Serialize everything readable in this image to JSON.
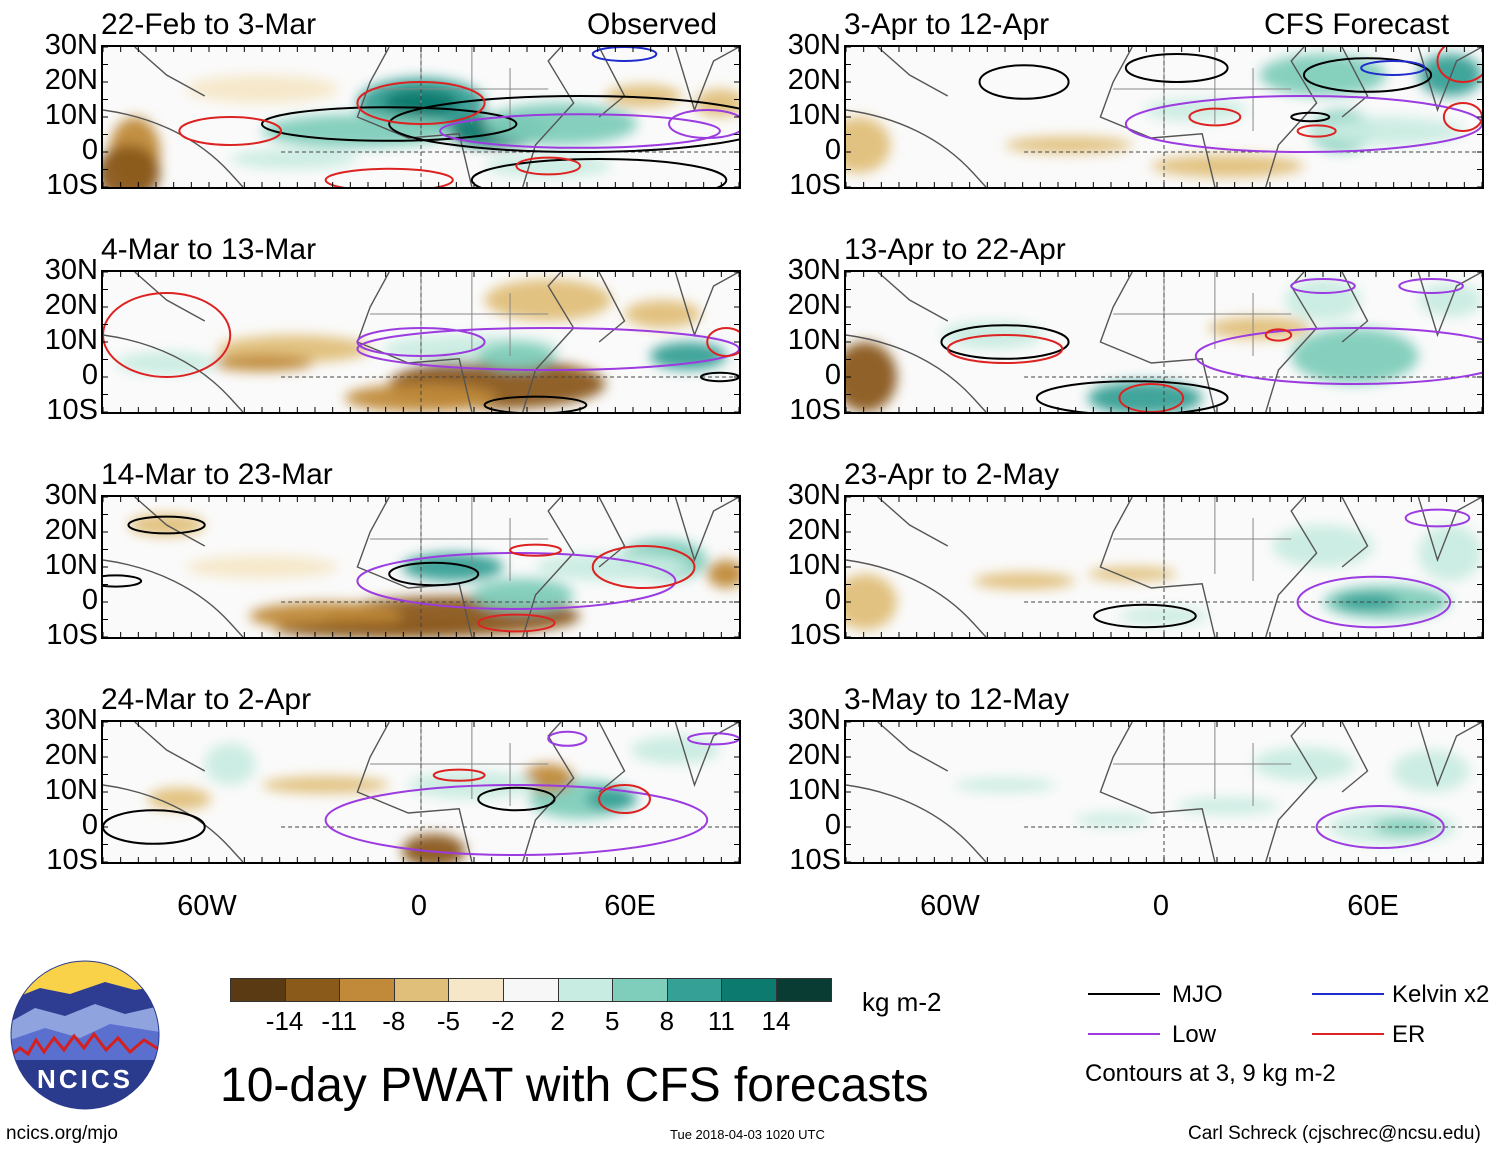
{
  "panels_left_label": "Observed",
  "panels_right_label": "CFS Forecast",
  "lat_labels": [
    "30N",
    "20N",
    "10N",
    "0",
    "10S"
  ],
  "lon_labels": [
    "60W",
    "0",
    "60E"
  ],
  "chart_data": [
    {
      "type": "heatmap",
      "title": "22-Feb to 3-Mar",
      "source": "Observed",
      "lat_range": [
        -10,
        30
      ],
      "lon_range": [
        -90,
        90
      ],
      "contours": [
        "MJO",
        "Low",
        "ER",
        "Kelvin x2"
      ]
    },
    {
      "type": "heatmap",
      "title": "4-Mar to 13-Mar",
      "source": "Observed",
      "lat_range": [
        -10,
        30
      ],
      "lon_range": [
        -90,
        90
      ],
      "contours": [
        "MJO",
        "Low",
        "ER"
      ]
    },
    {
      "type": "heatmap",
      "title": "14-Mar to 23-Mar",
      "source": "Observed",
      "lat_range": [
        -10,
        30
      ],
      "lon_range": [
        -90,
        90
      ],
      "contours": [
        "MJO",
        "Low",
        "ER"
      ]
    },
    {
      "type": "heatmap",
      "title": "24-Mar to 2-Apr",
      "source": "Observed",
      "lat_range": [
        -10,
        30
      ],
      "lon_range": [
        -90,
        90
      ],
      "contours": [
        "MJO",
        "Low",
        "ER"
      ]
    },
    {
      "type": "heatmap",
      "title": "3-Apr to 12-Apr",
      "source": "CFS Forecast",
      "lat_range": [
        -10,
        30
      ],
      "lon_range": [
        -90,
        90
      ],
      "contours": [
        "MJO",
        "Low",
        "ER",
        "Kelvin x2"
      ]
    },
    {
      "type": "heatmap",
      "title": "13-Apr to 22-Apr",
      "source": "CFS Forecast",
      "lat_range": [
        -10,
        30
      ],
      "lon_range": [
        -90,
        90
      ],
      "contours": [
        "MJO",
        "Low",
        "ER"
      ]
    },
    {
      "type": "heatmap",
      "title": "23-Apr to 2-May",
      "source": "CFS Forecast",
      "lat_range": [
        -10,
        30
      ],
      "lon_range": [
        -90,
        90
      ],
      "contours": [
        "MJO",
        "Low"
      ]
    },
    {
      "type": "heatmap",
      "title": "3-May to 12-May",
      "source": "CFS Forecast",
      "lat_range": [
        -10,
        30
      ],
      "lon_range": [
        -90,
        90
      ],
      "contours": [
        "Low"
      ]
    }
  ],
  "colorbar": {
    "labels": [
      "-14",
      "-11",
      "-8",
      "-5",
      "-2",
      "2",
      "5",
      "8",
      "11",
      "14"
    ],
    "colors": [
      "#5a3a12",
      "#8a5a1a",
      "#c08a3a",
      "#e0bf7a",
      "#f5e7c7",
      "#f7f7f7",
      "#c9ece2",
      "#7fcdbb",
      "#35a096",
      "#0c7a6e",
      "#093d33"
    ],
    "units": "kg m-2"
  },
  "legend": {
    "items": [
      {
        "label": "MJO",
        "color": "#000000"
      },
      {
        "label": "Kelvin x2",
        "color": "#1f2ccc"
      },
      {
        "label": "Low",
        "color": "#9b3be0"
      },
      {
        "label": "ER",
        "color": "#dd2222"
      }
    ],
    "note": "Contours at 3, 9 kg m-2"
  },
  "main_title": "10-day PWAT with CFS forecasts",
  "logo_text": "NCICS",
  "footer": {
    "url": "ncics.org/mjo",
    "timestamp": "Tue 2018-04-03 1020 UTC",
    "author": "Carl Schreck (cjschrec@ncsu.edu)"
  }
}
